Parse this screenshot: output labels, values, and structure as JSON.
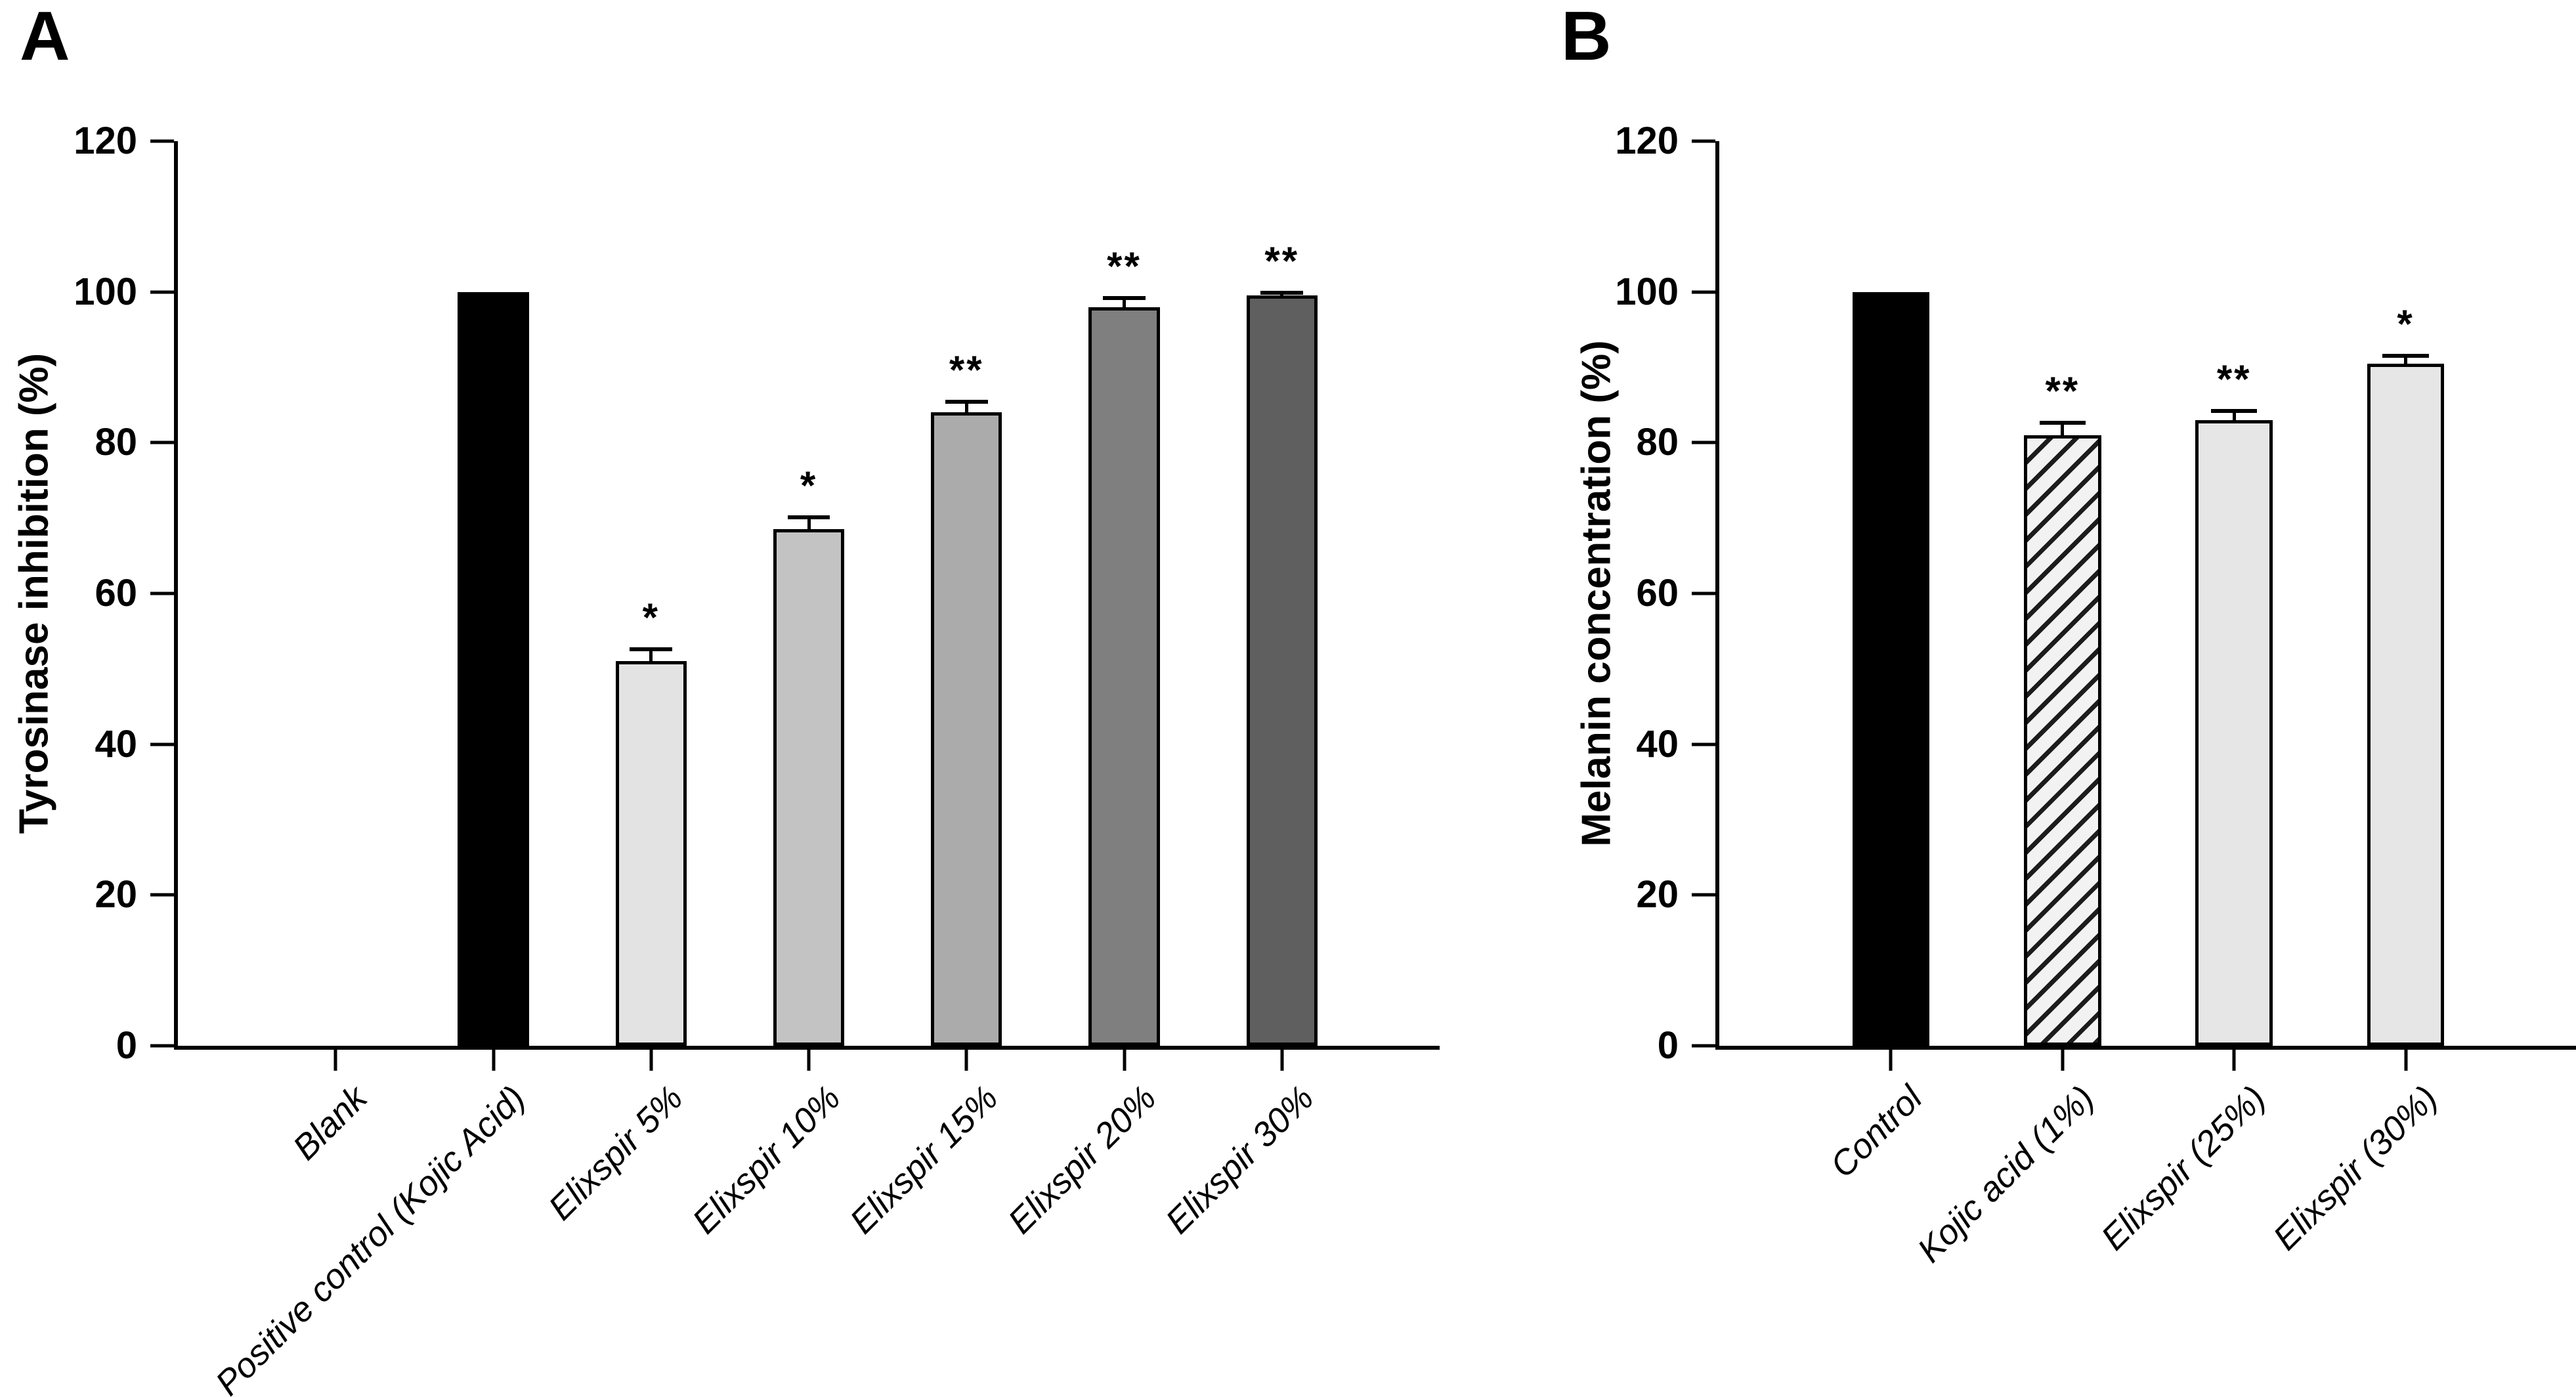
{
  "figure": {
    "background": "#ffffff",
    "axis_color": "#000000",
    "description_visible_text_only": true
  },
  "chart_data": [
    {
      "type": "bar",
      "panel_label": "A",
      "title": "",
      "xlabel": "",
      "ylabel": "Tyrosinase inhibition (%)",
      "ylim": [
        0,
        120
      ],
      "yticks": [
        0,
        20,
        40,
        60,
        80,
        100,
        120
      ],
      "grid": false,
      "legend": "none",
      "categories": [
        "Blank",
        "Positive control (Kojic Acid)",
        "Elixspir 5%",
        "Elixspir 10%",
        "Elixspir 15%",
        "Elixspir 20%",
        "Elixspir 30%"
      ],
      "values": [
        0,
        100,
        51,
        68.5,
        84,
        98,
        99.5
      ],
      "errors": [
        0,
        0,
        1.6,
        1.6,
        1.4,
        1.2,
        0.4
      ],
      "significance": [
        "",
        "",
        "*",
        "*",
        "**",
        "**",
        "**"
      ],
      "bar_fills": [
        "none",
        "#000000",
        "#e3e3e3",
        "#c3c3c3",
        "#ababab",
        "#7f7f7f",
        "#5f5f5f"
      ],
      "bar_hatch": [
        false,
        false,
        false,
        false,
        false,
        false,
        false
      ]
    },
    {
      "type": "bar",
      "panel_label": "B",
      "title": "",
      "xlabel": "",
      "ylabel": "Melanin concentration (%)",
      "ylim": [
        0,
        120
      ],
      "yticks": [
        0,
        20,
        40,
        60,
        80,
        100,
        120
      ],
      "grid": false,
      "legend": "none",
      "categories": [
        "Control",
        "Kojic acid  (1%)",
        "Elixspir (25%)",
        "Elixspir (30%)"
      ],
      "values": [
        100,
        81,
        83,
        90.5
      ],
      "errors": [
        0,
        1.6,
        1.2,
        1.0
      ],
      "significance": [
        "",
        "**",
        "**",
        "*"
      ],
      "bar_fills": [
        "#000000",
        "hatch",
        "#e6e6e6",
        "#e6e6e6"
      ],
      "bar_hatch": [
        false,
        true,
        false,
        false
      ]
    }
  ]
}
